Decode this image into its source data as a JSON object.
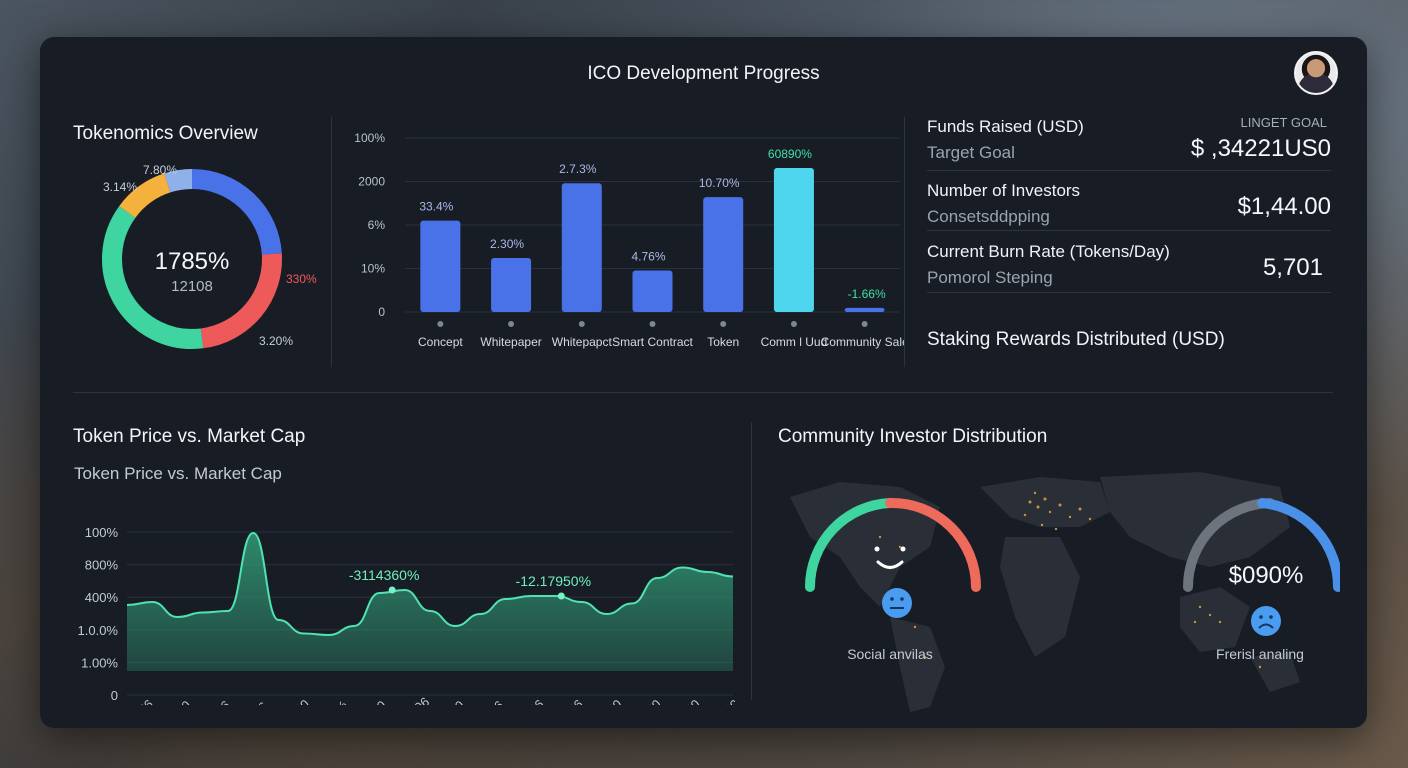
{
  "header": {
    "title": "ICO Development Progress"
  },
  "tokenomics": {
    "title": "Tokenomics Overview",
    "center_value": "1785%",
    "center_sub": "12108",
    "labels": [
      "7.80%",
      "3.14%",
      "330%",
      "3.20%"
    ],
    "segments": [
      {
        "color": "#4a72e8",
        "value": 24
      },
      {
        "color": "#ee5a5a",
        "value": 24
      },
      {
        "color": "#3fd5a0",
        "value": 37
      },
      {
        "color": "#f4b13c",
        "value": 10
      },
      {
        "color": "#8fb0e8",
        "value": 5
      }
    ]
  },
  "stage_chart": {
    "chart_data": {
      "type": "bar",
      "categories": [
        "Concept",
        "Whitepaper",
        "Whitepapct",
        "Smart Contract",
        "Token",
        "Comm l Uud",
        "Community Sale"
      ],
      "values": [
        66,
        39,
        93,
        30,
        83,
        104,
        3
      ],
      "data_labels": [
        "33.4%",
        "2.30%",
        "2.7.3%",
        "4.76%",
        "10.70%",
        "60890%",
        "-1.66%"
      ],
      "y_tick_labels": [
        "0",
        "10%",
        "6%",
        "2000",
        "100%"
      ],
      "ylim": [
        0,
        130
      ],
      "colors": {
        "bar": "#4a72e8",
        "highlight": "#4fd6ef",
        "highlight_label": "#3fe0a6"
      }
    }
  },
  "stats": [
    {
      "label": "Funds Raised (USD)",
      "sub": "Target Goal",
      "kicker": "LINGET GOAL",
      "value": "$ ,34221US0"
    },
    {
      "label": "Number of Investors",
      "sub": "Consetsddpping",
      "value": "$1,44.00"
    },
    {
      "label": "Current Burn Rate (Tokens/Day)",
      "sub": "Pomorol Steping",
      "value": "5,701"
    },
    {
      "label": "Staking Rewards Distributed (USD)"
    }
  ],
  "price_chart": {
    "title": "Token Price vs. Market Cap",
    "subtitle": "Token Price vs. Market Cap",
    "chart_data": {
      "type": "area",
      "x": [
        0,
        1,
        2,
        3,
        4,
        5,
        6,
        7,
        8,
        9,
        10,
        11,
        12,
        13,
        14,
        15,
        16,
        17,
        18,
        19,
        20,
        21,
        22,
        23,
        24
      ],
      "y": [
        44,
        46,
        36,
        39,
        40,
        92,
        34,
        25,
        24,
        30,
        52,
        54,
        40,
        30,
        38,
        48,
        50,
        50,
        46,
        38,
        45,
        62,
        69,
        66,
        63
      ],
      "y_tick_labels": [
        "0",
        "1.00%",
        "1.0.0%",
        "400%",
        "800%",
        "100%"
      ],
      "x_tick_labels": [
        "2,7?6",
        "2260",
        "3406",
        "0.36",
        "0.000",
        "9.0%",
        "4070",
        "1.0406",
        "2200",
        "4406",
        "2.706",
        "2.306",
        "1.000",
        "0.000",
        "4.000",
        "4.300"
      ],
      "annotations": [
        {
          "text": "-3114360%",
          "x": 10.5
        },
        {
          "text": "-12.17950%",
          "x": 17.2
        }
      ],
      "colors": {
        "line": "#4fe3b0",
        "fill": "#2f8f6f"
      }
    }
  },
  "distribution": {
    "title": "Community Investor Distribution",
    "gauge_left": {
      "caption": "Social anvilas",
      "icon": "neutral-face-icon",
      "colors": [
        "#3fd5a0",
        "#ee6a5a"
      ]
    },
    "gauge_right": {
      "caption": "Frerisl analing",
      "value": "$090%",
      "icon": "sad-face-icon",
      "colors": [
        "#7a808a",
        "#4a90e8"
      ]
    }
  }
}
